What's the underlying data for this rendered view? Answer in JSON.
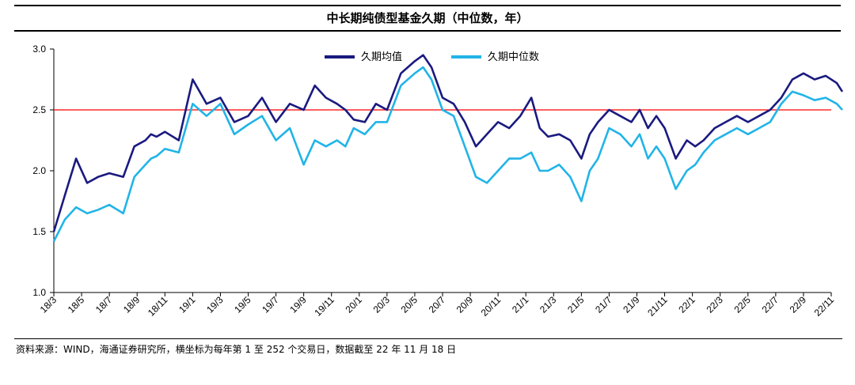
{
  "chart_data": {
    "type": "line",
    "title": "中长期纯债型基金久期（中位数，年）",
    "xlabel": "",
    "ylabel": "",
    "ylim": [
      1.0,
      3.0
    ],
    "yticks": [
      "1.0",
      "1.5",
      "2.0",
      "2.5",
      "3.0"
    ],
    "xticks": [
      "18/3",
      "18/5",
      "18/7",
      "18/9",
      "18/11",
      "19/1",
      "19/3",
      "19/5",
      "19/7",
      "19/9",
      "19/11",
      "20/1",
      "20/3",
      "20/5",
      "20/7",
      "20/9",
      "20/11",
      "21/1",
      "21/3",
      "21/5",
      "21/7",
      "21/9",
      "21/11",
      "22/1",
      "22/3",
      "22/5",
      "22/7",
      "22/9",
      "22/11"
    ],
    "reference_line": {
      "value": 2.5,
      "color": "#ff0000"
    },
    "legend_position": "top-center",
    "series": [
      {
        "name": "久期均值",
        "color": "#1a1a80",
        "x": [
          0,
          0.4,
          0.8,
          1.2,
          1.6,
          2.0,
          2.5,
          2.9,
          3.3,
          3.5,
          3.7,
          4.0,
          4.5,
          5.0,
          5.5,
          6.0,
          6.5,
          7.0,
          7.5,
          8.0,
          8.5,
          9.0,
          9.4,
          9.8,
          10.2,
          10.5,
          10.8,
          11.2,
          11.6,
          12.0,
          12.5,
          13.0,
          13.3,
          13.6,
          14.0,
          14.4,
          14.8,
          15.2,
          15.6,
          16.0,
          16.4,
          16.8,
          17.2,
          17.5,
          17.8,
          18.2,
          18.6,
          19.0,
          19.3,
          19.6,
          20.0,
          20.4,
          20.8,
          21.1,
          21.4,
          21.7,
          22.0,
          22.4,
          22.8,
          23.1,
          23.4,
          23.8,
          24.2,
          24.6,
          25.0,
          25.4,
          25.8,
          26.2,
          26.6,
          27.0,
          27.4,
          27.8,
          28.2,
          28.4
        ],
        "values": [
          1.5,
          1.8,
          2.1,
          1.9,
          1.95,
          1.98,
          1.95,
          2.2,
          2.25,
          2.3,
          2.28,
          2.32,
          2.25,
          2.75,
          2.55,
          2.6,
          2.4,
          2.45,
          2.6,
          2.4,
          2.55,
          2.5,
          2.7,
          2.6,
          2.55,
          2.5,
          2.42,
          2.4,
          2.55,
          2.5,
          2.8,
          2.9,
          2.95,
          2.85,
          2.6,
          2.55,
          2.4,
          2.2,
          2.3,
          2.4,
          2.35,
          2.45,
          2.6,
          2.35,
          2.28,
          2.3,
          2.25,
          2.1,
          2.3,
          2.4,
          2.5,
          2.45,
          2.4,
          2.5,
          2.35,
          2.45,
          2.35,
          2.1,
          2.25,
          2.2,
          2.25,
          2.35,
          2.4,
          2.45,
          2.4,
          2.45,
          2.5,
          2.6,
          2.75,
          2.8,
          2.75,
          2.78,
          2.72,
          2.65
        ]
      },
      {
        "name": "久期中位数",
        "color": "#21b4e8",
        "x": [
          0,
          0.4,
          0.8,
          1.2,
          1.6,
          2.0,
          2.5,
          2.9,
          3.3,
          3.5,
          3.7,
          4.0,
          4.5,
          5.0,
          5.5,
          6.0,
          6.5,
          7.0,
          7.5,
          8.0,
          8.5,
          9.0,
          9.4,
          9.8,
          10.2,
          10.5,
          10.8,
          11.2,
          11.6,
          12.0,
          12.5,
          13.0,
          13.3,
          13.6,
          14.0,
          14.4,
          14.8,
          15.2,
          15.6,
          16.0,
          16.4,
          16.8,
          17.2,
          17.5,
          17.8,
          18.2,
          18.6,
          19.0,
          19.3,
          19.6,
          20.0,
          20.4,
          20.8,
          21.1,
          21.4,
          21.7,
          22.0,
          22.4,
          22.8,
          23.1,
          23.4,
          23.8,
          24.2,
          24.6,
          25.0,
          25.4,
          25.8,
          26.2,
          26.6,
          27.0,
          27.4,
          27.8,
          28.2,
          28.4
        ],
        "values": [
          1.42,
          1.6,
          1.7,
          1.65,
          1.68,
          1.72,
          1.65,
          1.95,
          2.05,
          2.1,
          2.12,
          2.18,
          2.15,
          2.55,
          2.45,
          2.55,
          2.3,
          2.38,
          2.45,
          2.25,
          2.35,
          2.05,
          2.25,
          2.2,
          2.25,
          2.2,
          2.35,
          2.3,
          2.4,
          2.4,
          2.7,
          2.8,
          2.85,
          2.75,
          2.5,
          2.45,
          2.2,
          1.95,
          1.9,
          2.0,
          2.1,
          2.1,
          2.15,
          2.0,
          2.0,
          2.05,
          1.95,
          1.75,
          2.0,
          2.1,
          2.35,
          2.3,
          2.2,
          2.3,
          2.1,
          2.2,
          2.1,
          1.85,
          2.0,
          2.05,
          2.15,
          2.25,
          2.3,
          2.35,
          2.3,
          2.35,
          2.4,
          2.55,
          2.65,
          2.62,
          2.58,
          2.6,
          2.55,
          2.5
        ]
      }
    ]
  },
  "footer": {
    "source": "资料来源：WIND，海通证券研究所，横坐标为每年第 1 至 252 个交易日，数据截至 22 年 11 月 18 日"
  }
}
